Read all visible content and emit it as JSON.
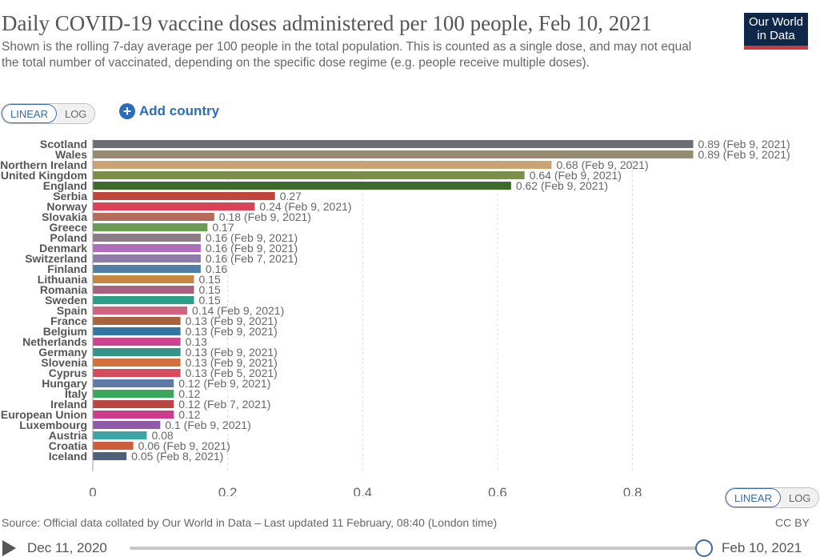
{
  "header": {
    "title": "Daily COVID-19 vaccine doses administered per 100 people, Feb 10, 2021",
    "subtitle": "Shown is the rolling 7-day average per 100 people in the total population. This is counted as a single dose, and may not equal the total number of vaccinated, depending on the specific dose regime (e.g. people receive multiple doses).",
    "logo_line1": "Our World",
    "logo_line2": "in Data"
  },
  "controls": {
    "linear_label": "LINEAR",
    "log_label": "LOG",
    "add_country_label": "Add country",
    "plus_symbol": "+"
  },
  "footer": {
    "source": "Source: Official data collated by Our World in Data – Last updated 11 February, 08:40 (London time)",
    "license": "CC BY",
    "start_date": "Dec 11, 2020",
    "end_date": "Feb 10, 2021"
  },
  "colors": {
    "logo_bg": "#0f2749",
    "logo_accent": "#d1383e",
    "accent": "#2a6ebb"
  },
  "chart_data": {
    "type": "bar",
    "orientation": "horizontal",
    "categories": [
      "Scotland",
      "Wales",
      "Northern Ireland",
      "United Kingdom",
      "England",
      "Serbia",
      "Norway",
      "Slovakia",
      "Greece",
      "Poland",
      "Denmark",
      "Switzerland",
      "Finland",
      "Lithuania",
      "Romania",
      "Sweden",
      "Spain",
      "France",
      "Belgium",
      "Netherlands",
      "Germany",
      "Slovenia",
      "Cyprus",
      "Hungary",
      "Italy",
      "Ireland",
      "European Union",
      "Luxembourg",
      "Austria",
      "Croatia",
      "Iceland"
    ],
    "values": [
      0.89,
      0.89,
      0.68,
      0.64,
      0.62,
      0.27,
      0.24,
      0.18,
      0.17,
      0.16,
      0.16,
      0.16,
      0.16,
      0.15,
      0.15,
      0.15,
      0.14,
      0.13,
      0.13,
      0.13,
      0.13,
      0.13,
      0.13,
      0.12,
      0.12,
      0.12,
      0.12,
      0.1,
      0.08,
      0.06,
      0.05
    ],
    "value_labels": [
      "0.89 (Feb 9, 2021)",
      "0.89 (Feb 9, 2021)",
      "0.68 (Feb 9, 2021)",
      "0.64 (Feb 9, 2021)",
      "0.62 (Feb 9, 2021)",
      "0.27",
      "0.24 (Feb 9, 2021)",
      "0.18 (Feb 9, 2021)",
      "0.17",
      "0.16 (Feb 9, 2021)",
      "0.16 (Feb 9, 2021)",
      "0.16 (Feb 7, 2021)",
      "0.16",
      "0.15",
      "0.15",
      "0.15",
      "0.14 (Feb 9, 2021)",
      "0.13 (Feb 9, 2021)",
      "0.13 (Feb 9, 2021)",
      "0.13",
      "0.13 (Feb 9, 2021)",
      "0.13 (Feb 9, 2021)",
      "0.13 (Feb 5, 2021)",
      "0.12 (Feb 9, 2021)",
      "0.12",
      "0.12 (Feb 7, 2021)",
      "0.12",
      "0.1 (Feb 9, 2021)",
      "0.08",
      "0.06 (Feb 9, 2021)",
      "0.05 (Feb 8, 2021)"
    ],
    "colors": [
      "#6d6d78",
      "#978a72",
      "#c9a374",
      "#7c8f47",
      "#3e6a2b",
      "#c2453b",
      "#db4257",
      "#b66a5a",
      "#6a9d52",
      "#8d7c85",
      "#ad6fbd",
      "#8f7ba7",
      "#4f7ea6",
      "#c7873f",
      "#a8627d",
      "#2b9e85",
      "#d0637d",
      "#a9633e",
      "#3176a3",
      "#cd4390",
      "#33948a",
      "#d3713d",
      "#d64c5c",
      "#5d7aa6",
      "#39a85c",
      "#bb4444",
      "#cd3b8c",
      "#8f5aa8",
      "#3aa5a2",
      "#cc5c3b",
      "#4e6078"
    ],
    "xlim": [
      0,
      0.9
    ],
    "xticks": [
      0,
      0.2,
      0.4,
      0.6,
      0.8
    ],
    "xtick_labels": [
      "0",
      "0.2",
      "0.4",
      "0.6",
      "0.8"
    ],
    "grid": true,
    "scale": "linear"
  }
}
